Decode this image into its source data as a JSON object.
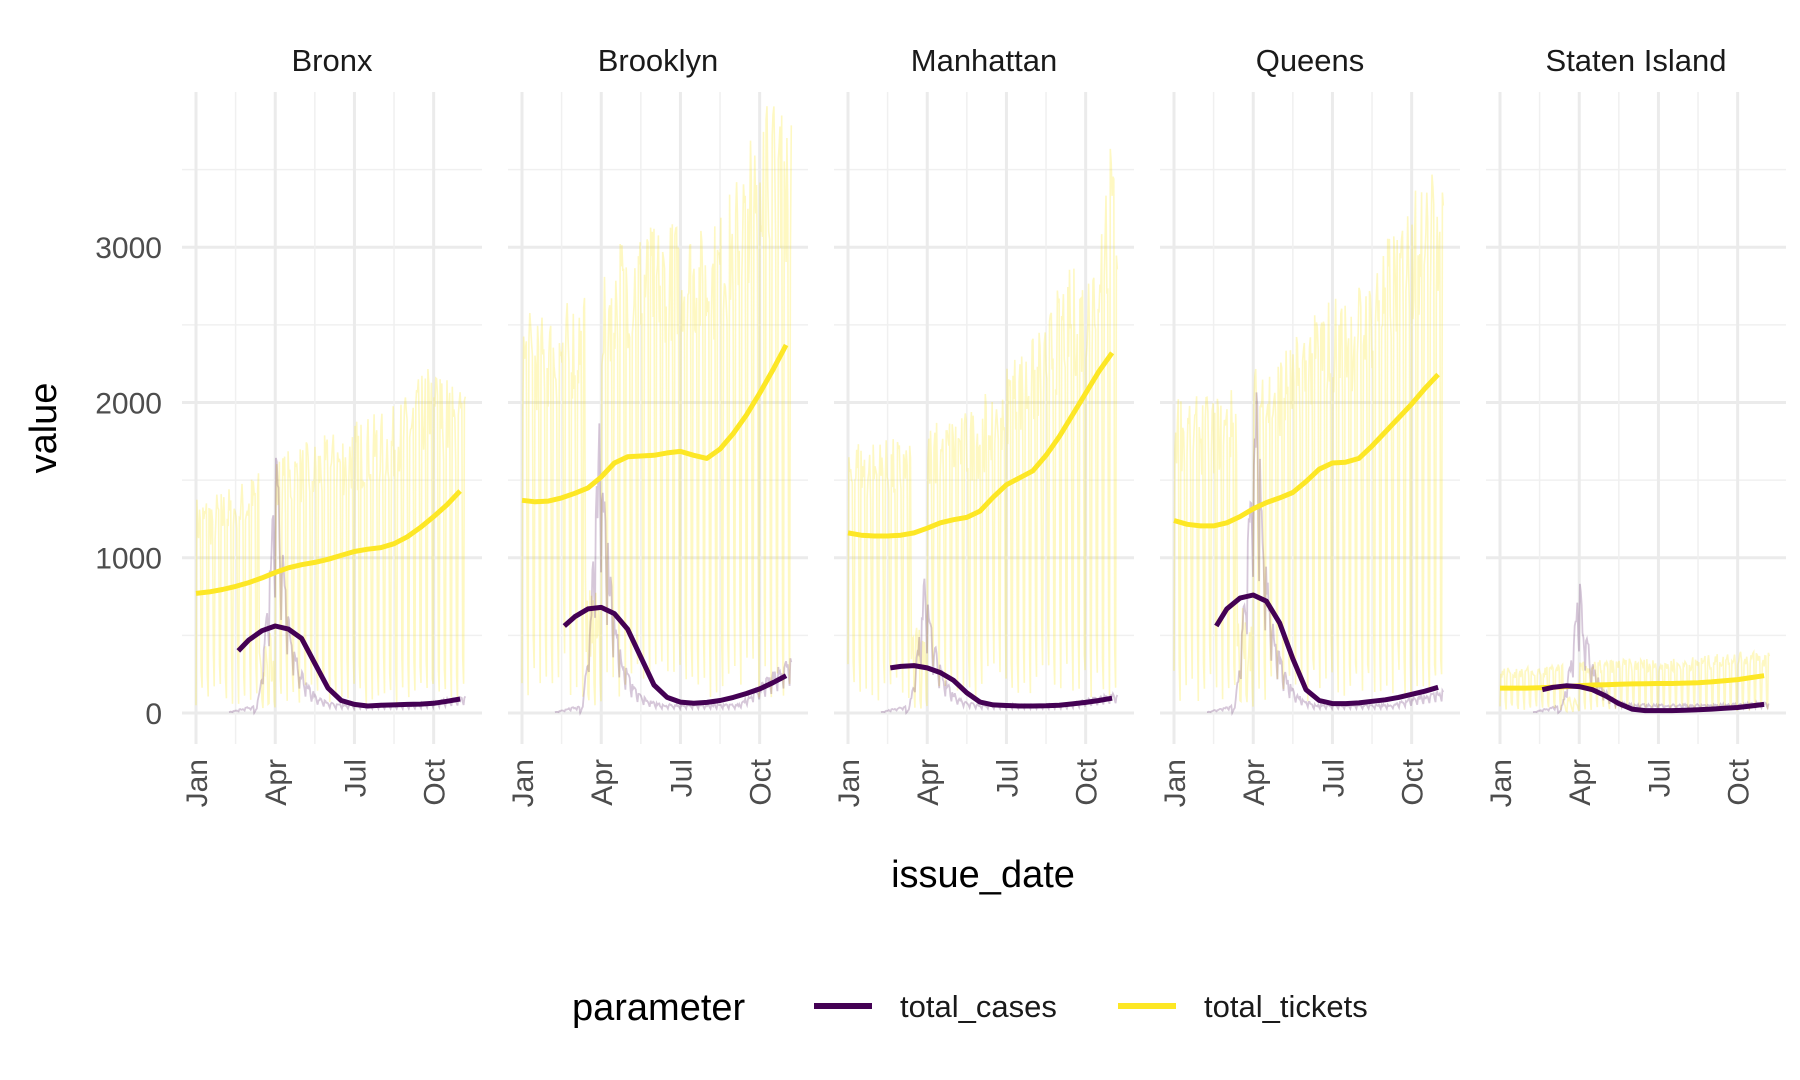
{
  "chart_data": {
    "type": "line",
    "facet_by": "borough",
    "facets": [
      "Bronx",
      "Brooklyn",
      "Manhattan",
      "Queens",
      "Staten Island"
    ],
    "xlabel": "issue_date",
    "ylabel": "value",
    "x_ticks": [
      "Jan",
      "Apr",
      "Jul",
      "Oct"
    ],
    "x_tick_months": [
      0,
      3,
      6,
      9
    ],
    "x_range_months": [
      0,
      10.3
    ],
    "ylim": [
      -200,
      4000
    ],
    "y_ticks": [
      0,
      1000,
      2000,
      3000
    ],
    "y_tick_labels": [
      "0",
      "1000",
      "2000",
      "3000"
    ],
    "grid": true,
    "legend": {
      "position": "bottom",
      "title": "parameter",
      "entries": [
        {
          "label": "total_cases",
          "color": "#440154"
        },
        {
          "label": "total_tickets",
          "color": "#fde725"
        }
      ]
    },
    "colors": {
      "total_cases": "#440154",
      "total_tickets": "#fde725"
    },
    "series": [
      {
        "name": "total_cases",
        "smoothed": {
          "Bronx": {
            "x": [
              1.6,
              2.0,
              2.5,
              3.0,
              3.5,
              4.0,
              4.5,
              5.0,
              5.5,
              6.0,
              6.5,
              7.0,
              7.5,
              8.0,
              8.5,
              9.0,
              9.5,
              10.0
            ],
            "y": [
              400,
              470,
              530,
              560,
              540,
              480,
              320,
              160,
              80,
              55,
              45,
              50,
              52,
              55,
              57,
              62,
              75,
              90
            ]
          },
          "Brooklyn": {
            "x": [
              1.6,
              2.0,
              2.5,
              3.0,
              3.5,
              4.0,
              4.5,
              5.0,
              5.5,
              6.0,
              6.5,
              7.0,
              7.5,
              8.0,
              8.5,
              9.0,
              9.5,
              10.0
            ],
            "y": [
              560,
              620,
              670,
              680,
              640,
              540,
              360,
              180,
              100,
              70,
              62,
              68,
              80,
              100,
              125,
              155,
              195,
              240
            ]
          },
          "Manhattan": {
            "x": [
              1.6,
              2.0,
              2.5,
              3.0,
              3.5,
              4.0,
              4.5,
              5.0,
              5.5,
              6.0,
              6.5,
              7.0,
              7.5,
              8.0,
              8.5,
              9.0,
              9.5,
              10.0
            ],
            "y": [
              290,
              300,
              305,
              290,
              260,
              210,
              130,
              70,
              52,
              48,
              45,
              45,
              46,
              50,
              58,
              68,
              80,
              95
            ]
          },
          "Queens": {
            "x": [
              1.6,
              2.0,
              2.5,
              3.0,
              3.5,
              4.0,
              4.5,
              5.0,
              5.5,
              6.0,
              6.5,
              7.0,
              7.5,
              8.0,
              8.5,
              9.0,
              9.5,
              10.0
            ],
            "y": [
              560,
              670,
              740,
              760,
              720,
              580,
              350,
              150,
              80,
              60,
              60,
              65,
              75,
              85,
              100,
              120,
              140,
              165
            ]
          },
          "Staten Island": {
            "x": [
              1.6,
              2.0,
              2.5,
              3.0,
              3.5,
              4.0,
              4.5,
              5.0,
              5.5,
              6.0,
              6.5,
              7.0,
              7.5,
              8.0,
              8.5,
              9.0,
              9.5,
              10.0
            ],
            "y": [
              150,
              165,
              175,
              170,
              150,
              110,
              60,
              25,
              15,
              15,
              15,
              17,
              20,
              25,
              30,
              35,
              45,
              55
            ]
          }
        },
        "raw_peaks": {
          "Bronx": {
            "month": 3.05,
            "value": 1510
          },
          "Brooklyn": {
            "month": 2.95,
            "value": 1760
          },
          "Manhattan": {
            "month": 2.9,
            "value": 800
          },
          "Queens": {
            "month": 3.1,
            "value": 1950
          },
          "Staten Island": {
            "month": 3.0,
            "value": 730
          }
        },
        "raw_late_level": {
          "Bronx": 90,
          "Brooklyn": 300,
          "Manhattan": 110,
          "Queens": 130,
          "Staten Island": 60
        }
      },
      {
        "name": "total_tickets",
        "smoothed": {
          "Bronx": {
            "x": [
              0,
              0.5,
              1,
              1.5,
              2,
              2.5,
              3,
              3.5,
              4,
              4.5,
              5,
              5.5,
              6,
              6.5,
              7,
              7.5,
              8,
              8.5,
              9,
              9.5,
              10
            ],
            "y": [
              770,
              780,
              795,
              815,
              840,
              870,
              905,
              935,
              955,
              970,
              990,
              1015,
              1040,
              1055,
              1065,
              1090,
              1135,
              1195,
              1265,
              1340,
              1430
            ]
          },
          "Brooklyn": {
            "x": [
              0,
              0.5,
              1,
              1.5,
              2,
              2.5,
              3,
              3.5,
              4,
              4.5,
              5,
              5.5,
              6,
              6.5,
              7,
              7.5,
              8,
              8.5,
              9,
              9.5,
              10
            ],
            "y": [
              1370,
              1360,
              1365,
              1385,
              1415,
              1450,
              1520,
              1610,
              1650,
              1655,
              1660,
              1675,
              1685,
              1660,
              1640,
              1700,
              1800,
              1920,
              2060,
              2210,
              2370
            ]
          },
          "Manhattan": {
            "x": [
              0,
              0.5,
              1,
              1.5,
              2,
              2.5,
              3,
              3.5,
              4,
              4.5,
              5,
              5.5,
              6,
              6.5,
              7,
              7.5,
              8,
              8.5,
              9,
              9.5,
              10
            ],
            "y": [
              1160,
              1145,
              1140,
              1140,
              1145,
              1160,
              1190,
              1225,
              1245,
              1260,
              1300,
              1390,
              1470,
              1515,
              1560,
              1660,
              1780,
              1920,
              2060,
              2200,
              2320
            ]
          },
          "Queens": {
            "x": [
              0,
              0.5,
              1,
              1.5,
              2,
              2.5,
              3,
              3.5,
              4,
              4.5,
              5,
              5.5,
              6,
              6.5,
              7,
              7.5,
              8,
              8.5,
              9,
              9.5,
              10
            ],
            "y": [
              1240,
              1215,
              1205,
              1205,
              1225,
              1265,
              1315,
              1355,
              1385,
              1420,
              1490,
              1570,
              1610,
              1615,
              1640,
              1720,
              1810,
              1900,
              1990,
              2090,
              2180
            ]
          },
          "Staten Island": {
            "x": [
              0,
              0.5,
              1,
              1.5,
              2,
              2.5,
              3,
              3.5,
              4,
              4.5,
              5,
              5.5,
              6,
              6.5,
              7,
              7.5,
              8,
              8.5,
              9,
              9.5,
              10
            ],
            "y": [
              160,
              160,
              160,
              162,
              165,
              170,
              175,
              180,
              182,
              185,
              187,
              188,
              190,
              190,
              192,
              195,
              200,
              207,
              215,
              228,
              240
            ]
          }
        },
        "raw_weekly_high": {
          "Bronx": 1400,
          "Brooklyn": 2600,
          "Manhattan": 1800,
          "Queens": 2100,
          "Staten Island": 300
        },
        "raw_weekly_low": {
          "Bronx": 250,
          "Brooklyn": 500,
          "Manhattan": 400,
          "Queens": 350,
          "Staten Island": 60
        },
        "raw_late_peak": {
          "Bronx": 2080,
          "Brooklyn": 3810,
          "Manhattan": 3700,
          "Queens": 3520,
          "Staten Island": 380
        }
      }
    ]
  }
}
